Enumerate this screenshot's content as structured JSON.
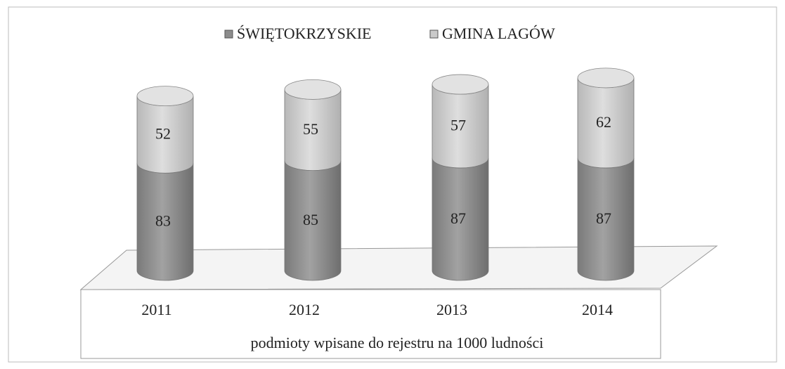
{
  "chart_data": {
    "type": "bar",
    "stacked": true,
    "x_label": "podmioty wpisane do rejestru na 1000 ludności",
    "categories": [
      "2011",
      "2012",
      "2013",
      "2014"
    ],
    "series": [
      {
        "name": "ŚWIĘTOKRZYSKIE",
        "color": "#8c8c8c",
        "values": [
          83,
          85,
          87,
          87
        ]
      },
      {
        "name": "GMINA LAGÓW",
        "color": "#cacaca",
        "values": [
          52,
          55,
          57,
          62
        ]
      }
    ]
  }
}
